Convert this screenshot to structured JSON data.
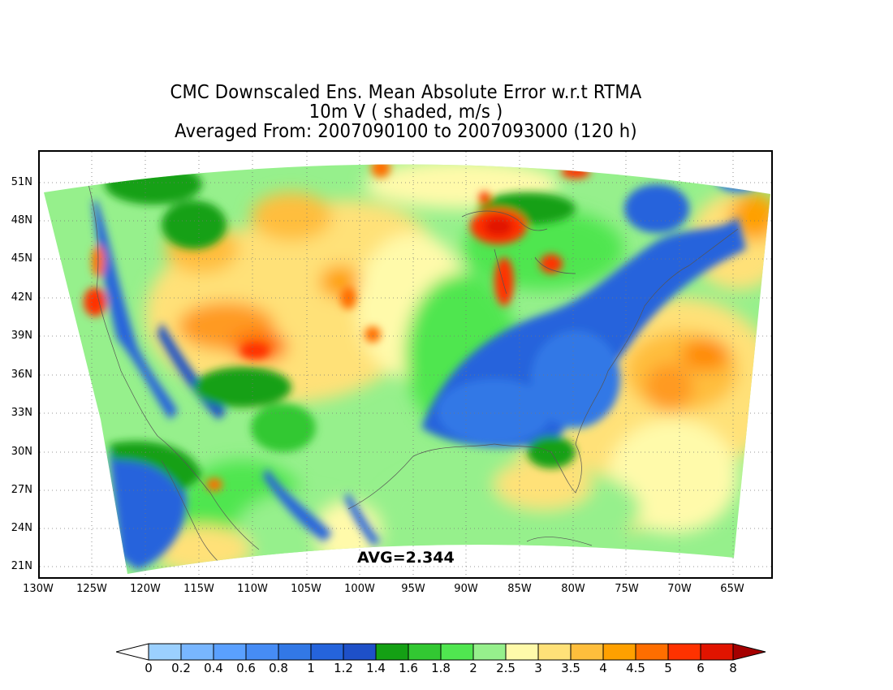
{
  "title": {
    "line1": "CMC Downscaled Ens. Mean Absolute Error w.r.t RTMA",
    "line2": "10m V ( shaded, m/s )",
    "line3": "Averaged From: 2007090100 to 2007093000 (120 h)"
  },
  "lat_labels": [
    "51N",
    "48N",
    "45N",
    "42N",
    "39N",
    "36N",
    "33N",
    "30N",
    "27N",
    "24N",
    "21N"
  ],
  "lon_labels": [
    "130W",
    "125W",
    "120W",
    "115W",
    "110W",
    "105W",
    "100W",
    "95W",
    "90W",
    "85W",
    "80W",
    "75W",
    "70W",
    "65W"
  ],
  "avg_text": "AVG=2.344",
  "colorbar": {
    "levels": [
      "0",
      "0.2",
      "0.4",
      "0.6",
      "0.8",
      "1",
      "1.2",
      "1.4",
      "1.6",
      "1.8",
      "2",
      "2.5",
      "3",
      "3.5",
      "4",
      "4.5",
      "5",
      "6",
      "8"
    ],
    "colors": [
      "#9bd0ff",
      "#78b6ff",
      "#5aa0ff",
      "#468cf5",
      "#3278e6",
      "#2564dc",
      "#1e50c8",
      "#14a014",
      "#32c832",
      "#50e650",
      "#96f08c",
      "#fffaaa",
      "#ffe178",
      "#ffbe3c",
      "#ffa000",
      "#ff6e00",
      "#ff3200",
      "#e11400",
      "#a50000"
    ],
    "low_extend_color": "#ffffff",
    "high_extend_color": "#a50000"
  }
}
